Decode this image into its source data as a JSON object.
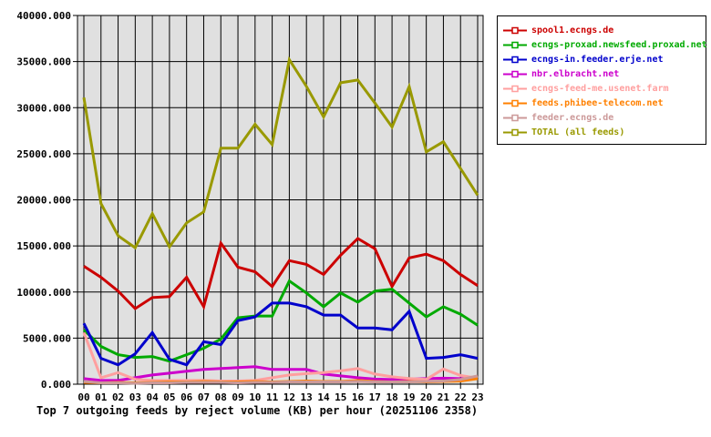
{
  "chart_data": {
    "type": "line",
    "title": "Top 7 outgoing feeds by reject volume (KB) per hour (20251106 2358)",
    "xlabel": "",
    "ylabel": "",
    "x_categories": [
      "00",
      "01",
      "02",
      "03",
      "04",
      "05",
      "06",
      "07",
      "08",
      "09",
      "10",
      "11",
      "12",
      "13",
      "14",
      "15",
      "16",
      "17",
      "18",
      "19",
      "20",
      "21",
      "22",
      "23"
    ],
    "ylim": [
      0,
      40000
    ],
    "ytick_step": 5000,
    "ytick_decimals": 3,
    "grid": true,
    "legend_position": "top-right",
    "plot_bg_color": "#e0e0e0",
    "grid_color": "#000000",
    "series": [
      {
        "name": "spool1.ecngs.de",
        "color": "#cc0000",
        "values": [
          12800,
          11600,
          10100,
          8200,
          9400,
          9500,
          11600,
          8400,
          15300,
          12700,
          12200,
          10600,
          13400,
          13000,
          11900,
          14000,
          15800,
          14700,
          10600,
          13700,
          14100,
          13400,
          11900,
          10700
        ]
      },
      {
        "name": "ecngs-proxad.newsfeed.proxad.net",
        "color": "#00aa00",
        "values": [
          5900,
          4100,
          3200,
          2900,
          3000,
          2500,
          3200,
          3900,
          4900,
          7200,
          7400,
          7400,
          11200,
          9900,
          8400,
          9900,
          8900,
          10100,
          10300,
          8800,
          7300,
          8400,
          7600,
          6400
        ]
      },
      {
        "name": "ecngs-in.feeder.erje.net",
        "color": "#0000cc",
        "values": [
          6600,
          2800,
          2100,
          3300,
          5600,
          2700,
          2100,
          4600,
          4300,
          6900,
          7300,
          8800,
          8800,
          8400,
          7500,
          7500,
          6100,
          6100,
          5900,
          7900,
          2800,
          2900,
          3200,
          2800
        ]
      },
      {
        "name": "nbr.elbracht.net",
        "color": "#cc00cc",
        "values": [
          600,
          400,
          400,
          700,
          1000,
          1200,
          1400,
          1600,
          1700,
          1800,
          1900,
          1600,
          1600,
          1600,
          1100,
          900,
          700,
          550,
          500,
          550,
          600,
          650,
          600,
          650
        ]
      },
      {
        "name": "ecngs-feed-me.usenet.farm",
        "color": "#ff9f9f",
        "values": [
          5600,
          700,
          1250,
          520,
          400,
          400,
          400,
          400,
          350,
          350,
          400,
          700,
          1000,
          1150,
          1250,
          1450,
          1700,
          1100,
          800,
          620,
          520,
          1650,
          950,
          650
        ]
      },
      {
        "name": "feeds.phibee-telecom.net",
        "color": "#ff8000",
        "values": [
          200,
          150,
          200,
          150,
          200,
          250,
          250,
          300,
          250,
          250,
          300,
          250,
          300,
          350,
          300,
          300,
          400,
          300,
          250,
          300,
          250,
          300,
          350,
          600
        ]
      },
      {
        "name": "feeder.ecngs.de",
        "color": "#cc9999",
        "values": [
          300,
          150,
          150,
          100,
          150,
          150,
          200,
          200,
          200,
          150,
          200,
          200,
          250,
          250,
          250,
          250,
          300,
          250,
          250,
          250,
          300,
          350,
          500,
          900
        ]
      },
      {
        "name": "TOTAL (all feeds)",
        "color": "#999900",
        "values": [
          31100,
          19600,
          16100,
          14800,
          18500,
          14900,
          17500,
          18700,
          25600,
          25600,
          28200,
          26000,
          35200,
          32300,
          29000,
          32700,
          33000,
          30500,
          27900,
          32300,
          25200,
          26300,
          23400,
          20500
        ]
      }
    ]
  }
}
